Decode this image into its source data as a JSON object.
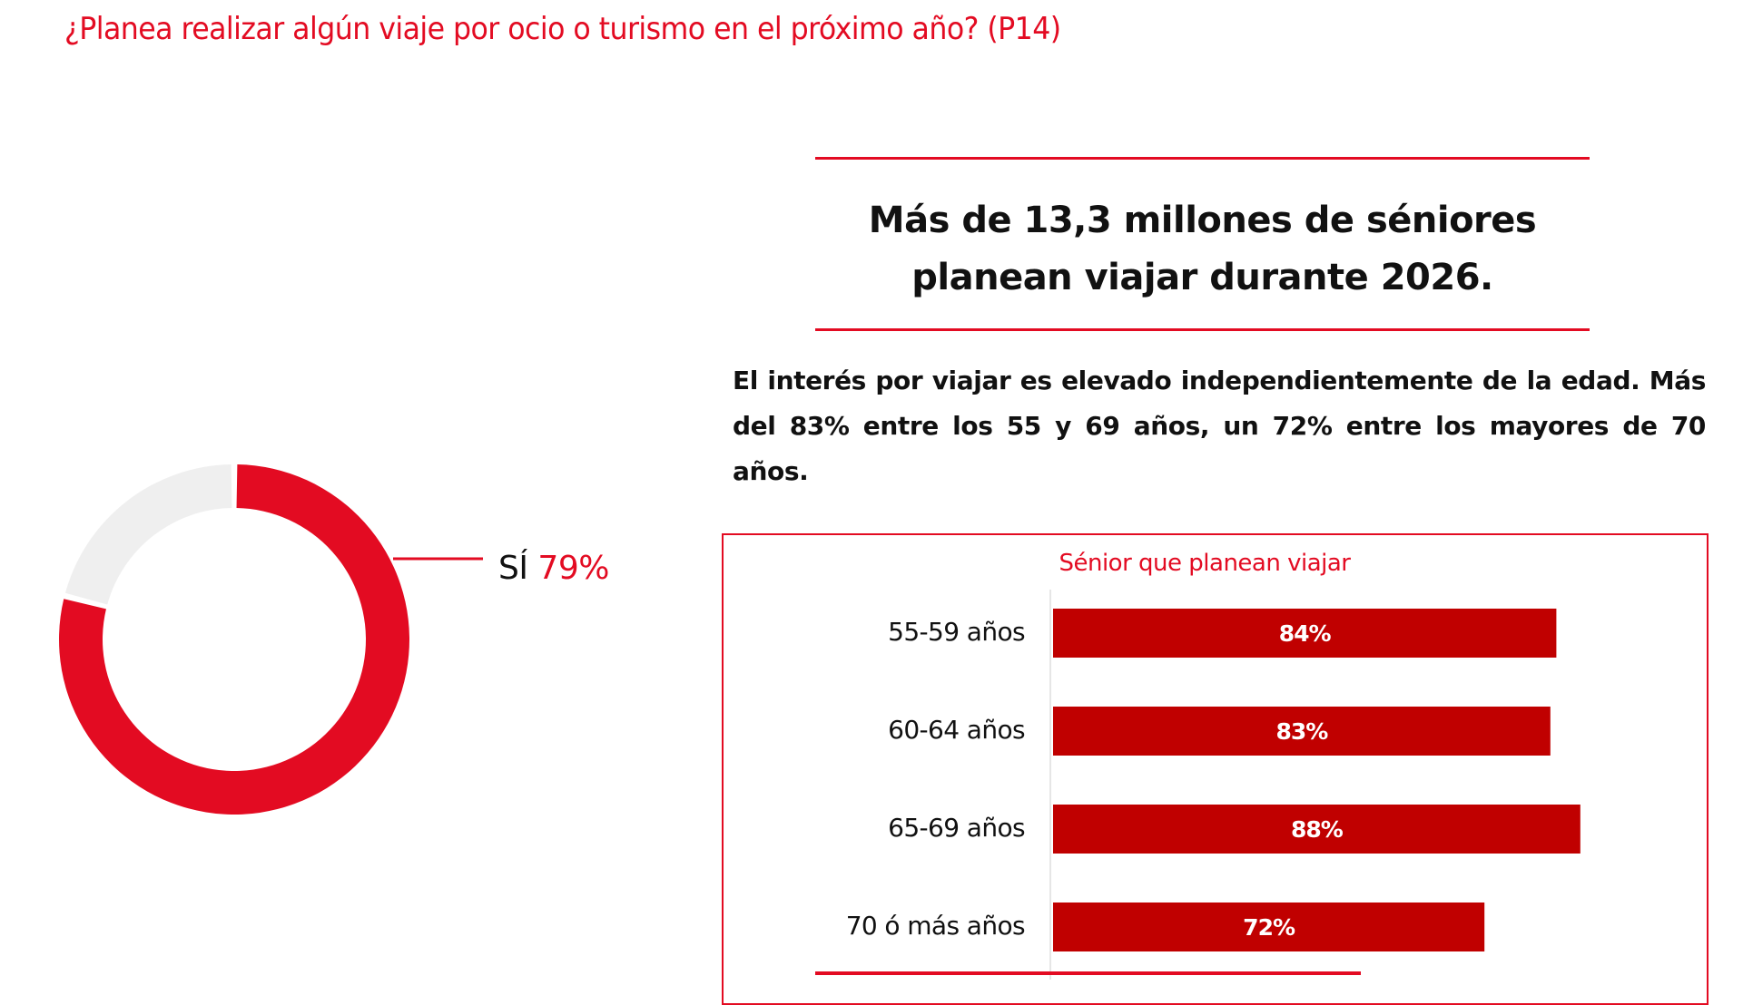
{
  "question_title": "¿Planea realizar algún viaje por ocio o turismo en el próximo año? (P14)",
  "headline": [
    "Más de 13,3 millones de séniores",
    "planean viajar durante 2026."
  ],
  "paragraph": "El interés por viajar es elevado independientemente de la edad. Más del 83% entre los 55 y 69 años, un 72% entre los mayores de 70 años.",
  "colors": {
    "accent": "#e30b22",
    "bar": "#c00000",
    "donut_rest": "#efefef"
  },
  "chart_data": [
    {
      "type": "pie",
      "subtype": "donut",
      "slices": [
        {
          "label": "SÍ",
          "value": 79,
          "color": "#e30b22"
        },
        {
          "label": "",
          "value": 21,
          "color": "#efefef"
        }
      ],
      "data_label": {
        "name": "SÍ",
        "value": "79%"
      }
    },
    {
      "type": "bar",
      "orientation": "horizontal",
      "title": "Sénior que planean viajar",
      "categories": [
        "55-59 años",
        "60-64 años",
        "65-69 años",
        "70 ó más años"
      ],
      "values": [
        84,
        83,
        88,
        72
      ],
      "value_labels": [
        "84%",
        "83%",
        "88%",
        "72%"
      ],
      "xlim": [
        0,
        100
      ],
      "grid": false
    }
  ]
}
